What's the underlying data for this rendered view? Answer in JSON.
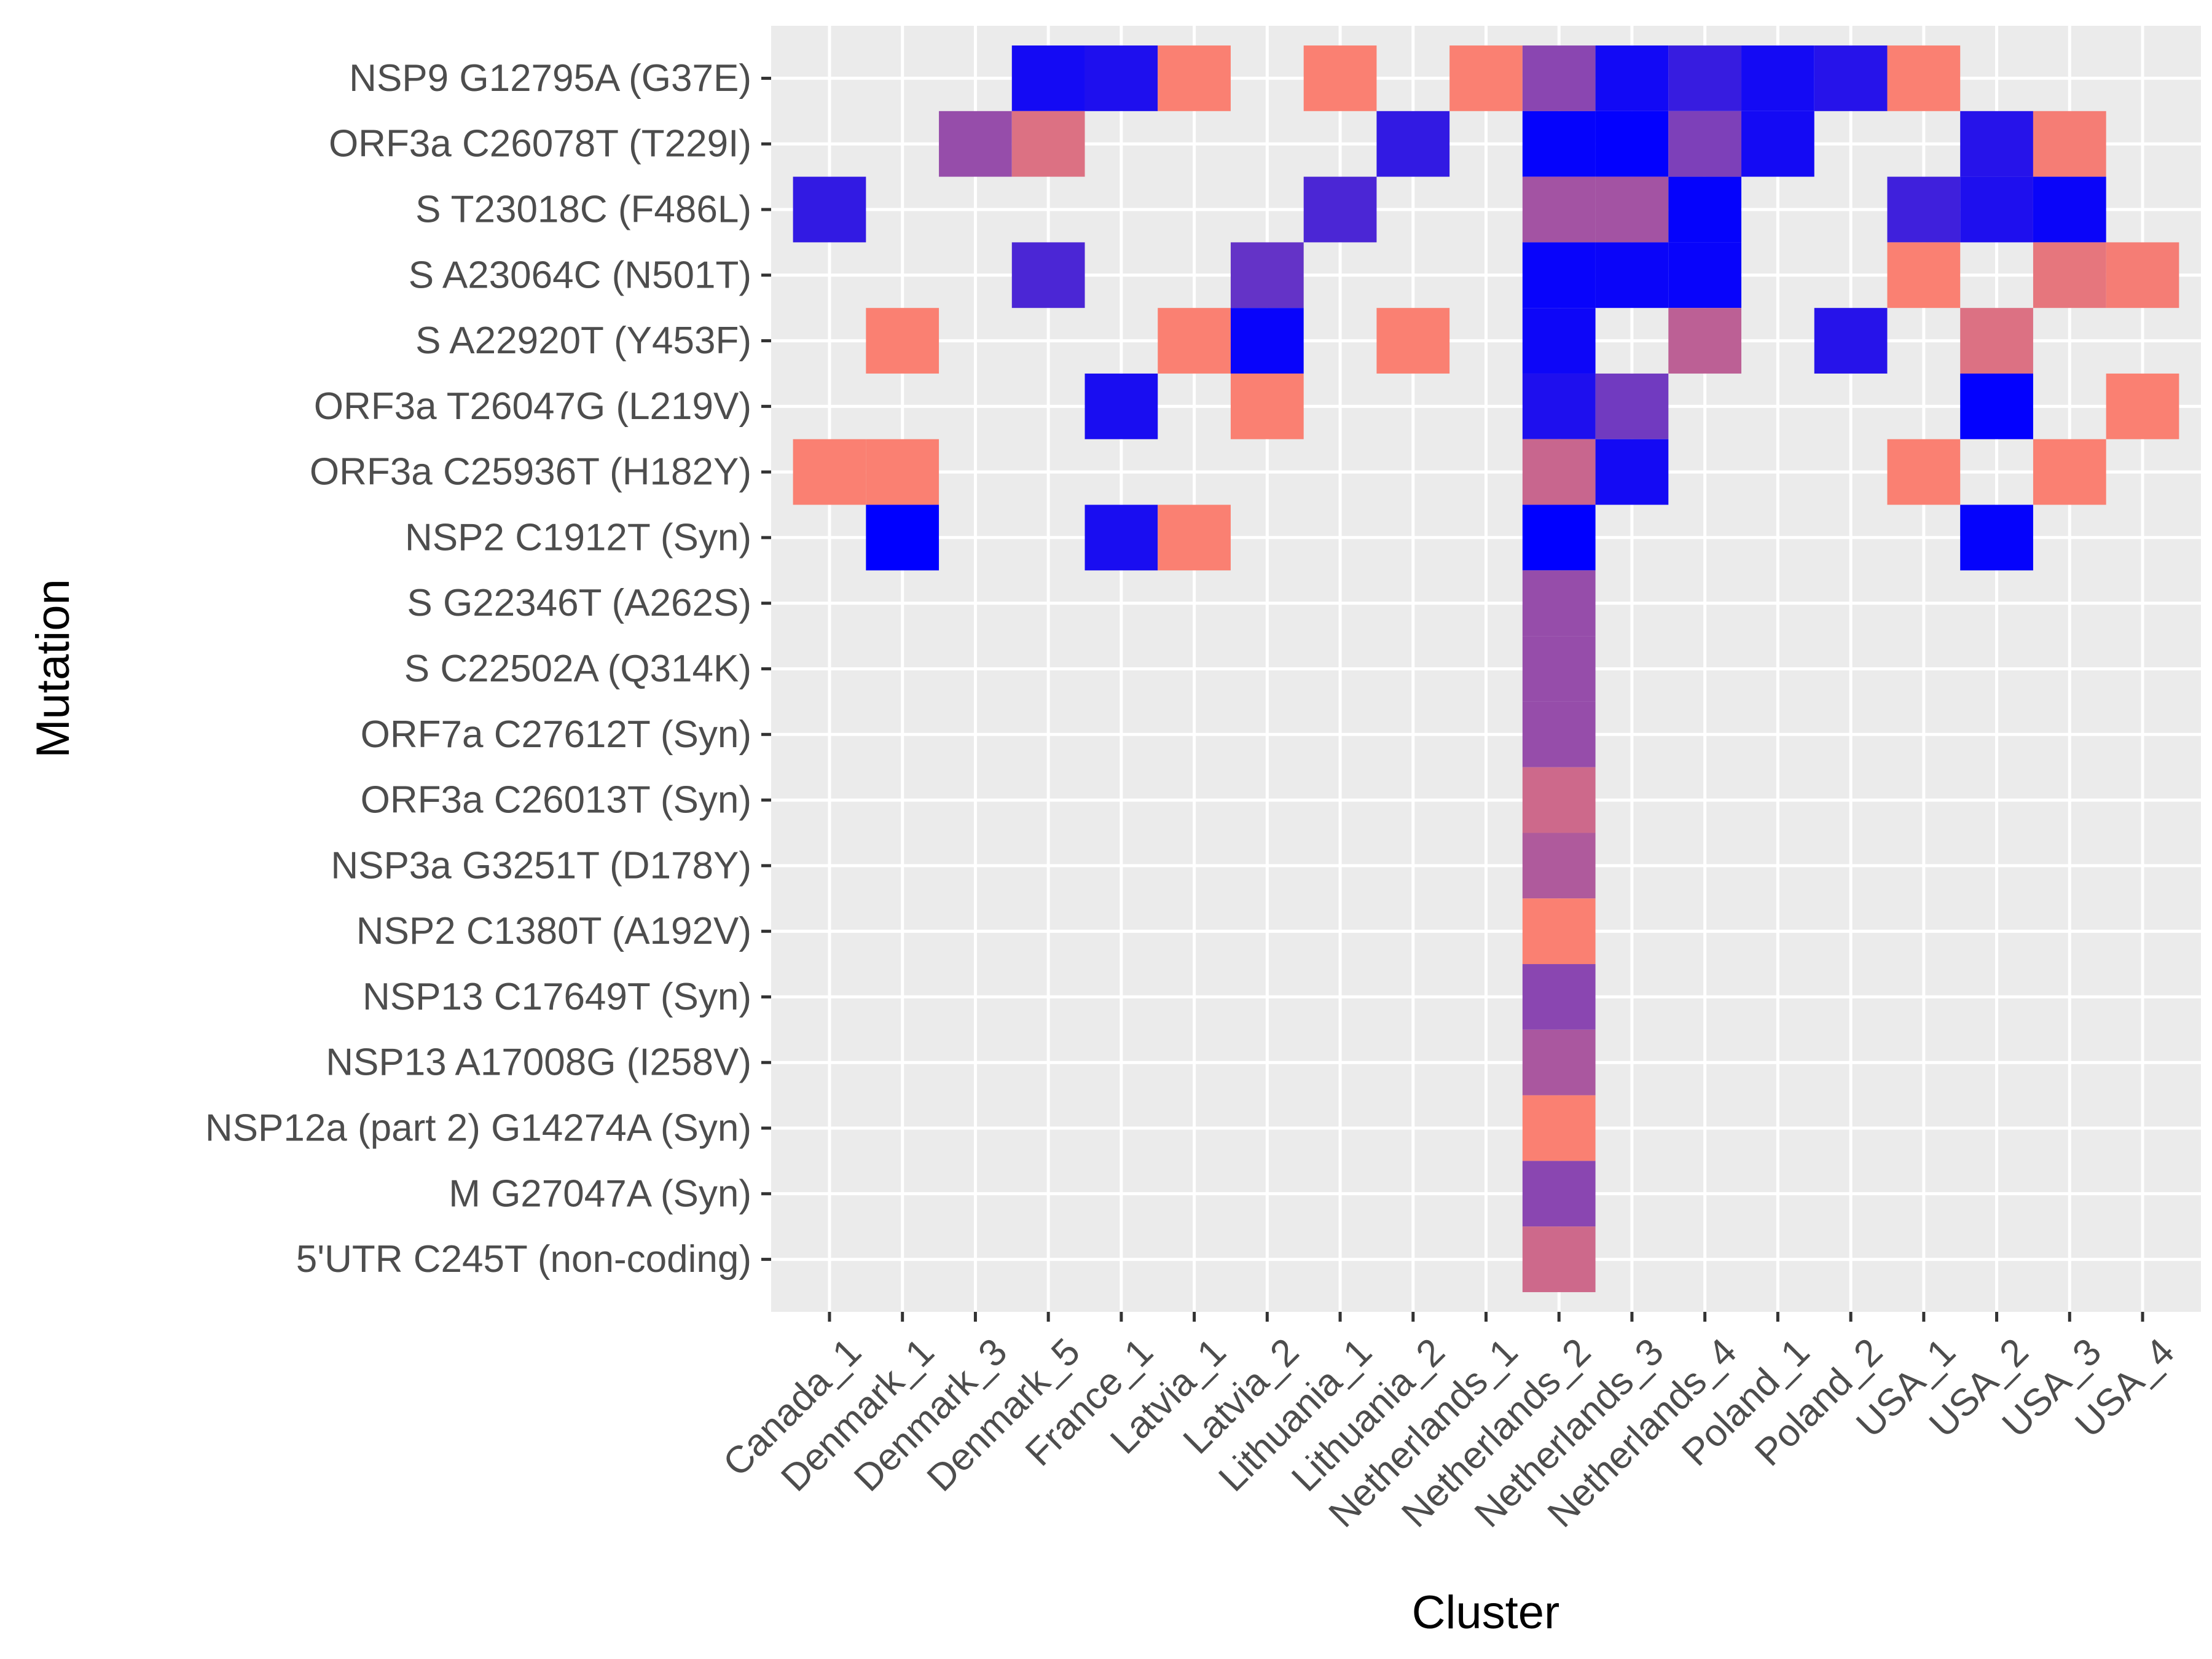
{
  "chart_data": {
    "type": "heatmap",
    "xlabel": "Cluster",
    "ylabel": "Mutation",
    "grid": true,
    "legend": "none",
    "x": [
      "Canada_1",
      "Denmark_1",
      "Denmark_3",
      "Denmark_5",
      "France_1",
      "Latvia_1",
      "Latvia_2",
      "Lithuania_1",
      "Lithuania_2",
      "Netherlands_1",
      "Netherlands_2",
      "Netherlands_3",
      "Netherlands_4",
      "Poland_1",
      "Poland_2",
      "USA_1",
      "USA_2",
      "USA_3",
      "USA_4"
    ],
    "y": [
      "NSP9 G12795A (G37E)",
      "ORF3a C26078T (T229I)",
      "S T23018C (F486L)",
      "S A23064C (N501T)",
      "S A22920T (Y453F)",
      "ORF3a T26047G (L219V)",
      "ORF3a C25936T (H182Y)",
      "NSP2 C1912T (Syn)",
      "S G22346T (A262S)",
      "S C22502A (Q314K)",
      "ORF7a C27612T (Syn)",
      "ORF3a C26013T (Syn)",
      "NSP3a G3251T (D178Y)",
      "NSP2 C1380T (A192V)",
      "NSP13 C17649T (Syn)",
      "NSP13 A17008G (I258V)",
      "NSP12a (part 2) G14274A (Syn)",
      "M G27047A (Syn)",
      "5'UTR C245T (non-coding)"
    ],
    "colors": {
      "low": "#fa8072",
      "high": "#0000ff",
      "panel": "#ebebeb",
      "grid": "#ffffff"
    },
    "value_range": [
      0,
      1
    ],
    "cells": [
      {
        "x": "Denmark_5",
        "y": "NSP9 G12795A (G37E)",
        "value": 0.92
      },
      {
        "x": "France_1",
        "y": "NSP9 G12795A (G37E)",
        "value": 0.88
      },
      {
        "x": "Latvia_1",
        "y": "NSP9 G12795A (G37E)",
        "value": 0.0
      },
      {
        "x": "Lithuania_1",
        "y": "NSP9 G12795A (G37E)",
        "value": 0.0
      },
      {
        "x": "Netherlands_1",
        "y": "NSP9 G12795A (G37E)",
        "value": 0.0
      },
      {
        "x": "Netherlands_2",
        "y": "NSP9 G12795A (G37E)",
        "value": 0.45
      },
      {
        "x": "Netherlands_3",
        "y": "NSP9 G12795A (G37E)",
        "value": 0.93
      },
      {
        "x": "Netherlands_4",
        "y": "NSP9 G12795A (G37E)",
        "value": 0.78
      },
      {
        "x": "Poland_1",
        "y": "NSP9 G12795A (G37E)",
        "value": 0.92
      },
      {
        "x": "Poland_2",
        "y": "NSP9 G12795A (G37E)",
        "value": 0.85
      },
      {
        "x": "USA_1",
        "y": "NSP9 G12795A (G37E)",
        "value": 0.0
      },
      {
        "x": "Denmark_3",
        "y": "ORF3a C26078T (T229I)",
        "value": 0.4
      },
      {
        "x": "Denmark_5",
        "y": "ORF3a C26078T (T229I)",
        "value": 0.12
      },
      {
        "x": "Lithuania_2",
        "y": "ORF3a C26078T (T229I)",
        "value": 0.8
      },
      {
        "x": "Netherlands_2",
        "y": "ORF3a C26078T (T229I)",
        "value": 0.98
      },
      {
        "x": "Netherlands_3",
        "y": "ORF3a C26078T (T229I)",
        "value": 0.99
      },
      {
        "x": "Netherlands_4",
        "y": "ORF3a C26078T (T229I)",
        "value": 0.5
      },
      {
        "x": "Poland_1",
        "y": "ORF3a C26078T (T229I)",
        "value": 0.92
      },
      {
        "x": "USA_2",
        "y": "ORF3a C26078T (T229I)",
        "value": 0.85
      },
      {
        "x": "USA_3",
        "y": "ORF3a C26078T (T229I)",
        "value": 0.02
      },
      {
        "x": "Canada_1",
        "y": "S T23018C (F486L)",
        "value": 0.8
      },
      {
        "x": "Lithuania_1",
        "y": "S T23018C (F486L)",
        "value": 0.7
      },
      {
        "x": "Netherlands_2",
        "y": "S T23018C (F486L)",
        "value": 0.35
      },
      {
        "x": "Netherlands_3",
        "y": "S T23018C (F486L)",
        "value": 0.35
      },
      {
        "x": "Netherlands_4",
        "y": "S T23018C (F486L)",
        "value": 0.98
      },
      {
        "x": "USA_1",
        "y": "S T23018C (F486L)",
        "value": 0.75
      },
      {
        "x": "USA_2",
        "y": "S T23018C (F486L)",
        "value": 0.88
      },
      {
        "x": "USA_3",
        "y": "S T23018C (F486L)",
        "value": 0.96
      },
      {
        "x": "Denmark_5",
        "y": "S A23064C (N501T)",
        "value": 0.7
      },
      {
        "x": "Latvia_2",
        "y": "S A23064C (N501T)",
        "value": 0.6
      },
      {
        "x": "Netherlands_2",
        "y": "S A23064C (N501T)",
        "value": 0.97
      },
      {
        "x": "Netherlands_3",
        "y": "S A23064C (N501T)",
        "value": 0.96
      },
      {
        "x": "Netherlands_4",
        "y": "S A23064C (N501T)",
        "value": 0.97
      },
      {
        "x": "USA_1",
        "y": "S A23064C (N501T)",
        "value": 0.0
      },
      {
        "x": "USA_3",
        "y": "S A23064C (N501T)",
        "value": 0.08
      },
      {
        "x": "USA_4",
        "y": "S A23064C (N501T)",
        "value": 0.02
      },
      {
        "x": "Denmark_1",
        "y": "S A22920T (Y453F)",
        "value": 0.0
      },
      {
        "x": "Latvia_1",
        "y": "S A22920T (Y453F)",
        "value": 0.0
      },
      {
        "x": "Latvia_2",
        "y": "S A22920T (Y453F)",
        "value": 0.97
      },
      {
        "x": "Lithuania_2",
        "y": "S A22920T (Y453F)",
        "value": 0.0
      },
      {
        "x": "Netherlands_2",
        "y": "S A22920T (Y453F)",
        "value": 0.95
      },
      {
        "x": "Netherlands_4",
        "y": "S A22920T (Y453F)",
        "value": 0.25
      },
      {
        "x": "Poland_2",
        "y": "S A22920T (Y453F)",
        "value": 0.85
      },
      {
        "x": "USA_2",
        "y": "S A22920T (Y453F)",
        "value": 0.12
      },
      {
        "x": "France_1",
        "y": "ORF3a T26047G (L219V)",
        "value": 0.9
      },
      {
        "x": "Latvia_2",
        "y": "ORF3a T26047G (L219V)",
        "value": 0.0
      },
      {
        "x": "Netherlands_2",
        "y": "ORF3a T26047G (L219V)",
        "value": 0.88
      },
      {
        "x": "Netherlands_3",
        "y": "ORF3a T26047G (L219V)",
        "value": 0.55
      },
      {
        "x": "USA_2",
        "y": "ORF3a T26047G (L219V)",
        "value": 0.99
      },
      {
        "x": "USA_4",
        "y": "ORF3a T26047G (L219V)",
        "value": 0.0
      },
      {
        "x": "Canada_1",
        "y": "ORF3a C25936T (H182Y)",
        "value": 0.0
      },
      {
        "x": "Denmark_1",
        "y": "ORF3a C25936T (H182Y)",
        "value": 0.0
      },
      {
        "x": "Netherlands_2",
        "y": "ORF3a C25936T (H182Y)",
        "value": 0.2
      },
      {
        "x": "Netherlands_3",
        "y": "ORF3a C25936T (H182Y)",
        "value": 0.92
      },
      {
        "x": "USA_1",
        "y": "ORF3a C25936T (H182Y)",
        "value": 0.0
      },
      {
        "x": "USA_3",
        "y": "ORF3a C25936T (H182Y)",
        "value": 0.0
      },
      {
        "x": "Denmark_1",
        "y": "NSP2 C1912T (Syn)",
        "value": 1.0
      },
      {
        "x": "France_1",
        "y": "NSP2 C1912T (Syn)",
        "value": 0.9
      },
      {
        "x": "Latvia_1",
        "y": "NSP2 C1912T (Syn)",
        "value": 0.0
      },
      {
        "x": "Netherlands_2",
        "y": "NSP2 C1912T (Syn)",
        "value": 1.0
      },
      {
        "x": "USA_2",
        "y": "NSP2 C1912T (Syn)",
        "value": 0.98
      },
      {
        "x": "Netherlands_2",
        "y": "S G22346T (A262S)",
        "value": 0.4
      },
      {
        "x": "Netherlands_2",
        "y": "S C22502A (Q314K)",
        "value": 0.4
      },
      {
        "x": "Netherlands_2",
        "y": "ORF7a C27612T (Syn)",
        "value": 0.4
      },
      {
        "x": "Netherlands_2",
        "y": "ORF3a C26013T (Syn)",
        "value": 0.18
      },
      {
        "x": "Netherlands_2",
        "y": "NSP3a G3251T (D178Y)",
        "value": 0.3
      },
      {
        "x": "Netherlands_2",
        "y": "NSP2 C1380T (A192V)",
        "value": 0.0
      },
      {
        "x": "Netherlands_2",
        "y": "NSP13 C17649T (Syn)",
        "value": 0.45
      },
      {
        "x": "Netherlands_2",
        "y": "NSP13 A17008G (I258V)",
        "value": 0.32
      },
      {
        "x": "Netherlands_2",
        "y": "NSP12a (part 2) G14274A (Syn)",
        "value": 0.0
      },
      {
        "x": "Netherlands_2",
        "y": "M G27047A (Syn)",
        "value": 0.45
      },
      {
        "x": "Netherlands_2",
        "y": "5'UTR C245T (non-coding)",
        "value": 0.18
      }
    ]
  }
}
